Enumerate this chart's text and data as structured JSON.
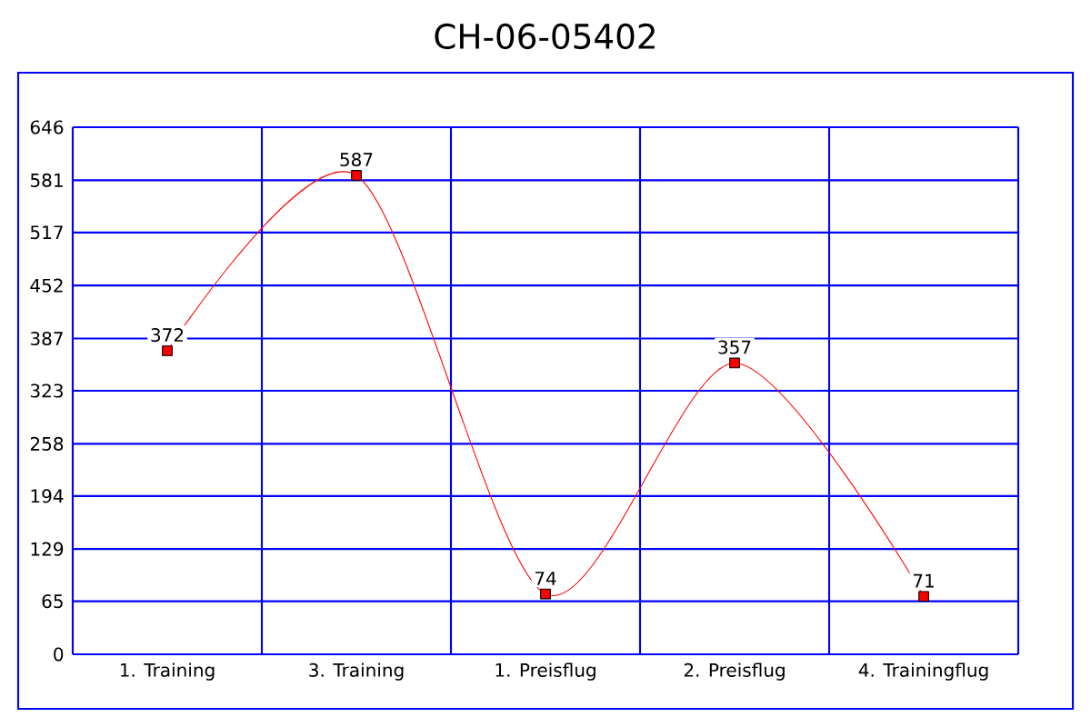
{
  "chart_data": {
    "type": "line",
    "title": "CH-06-05402",
    "categories": [
      "1. Training",
      "3. Training",
      "1. Preisflug",
      "2. Preisflug",
      "4. Trainingflug"
    ],
    "values": [
      372,
      587,
      74,
      357,
      71
    ],
    "color": "#ff0000",
    "ylim": [
      0,
      646
    ],
    "yticks": [
      0,
      65,
      129,
      194,
      258,
      323,
      387,
      452,
      517,
      581,
      646
    ],
    "grid": true,
    "marker": "square",
    "line_style": "solid",
    "data_labels": true
  }
}
